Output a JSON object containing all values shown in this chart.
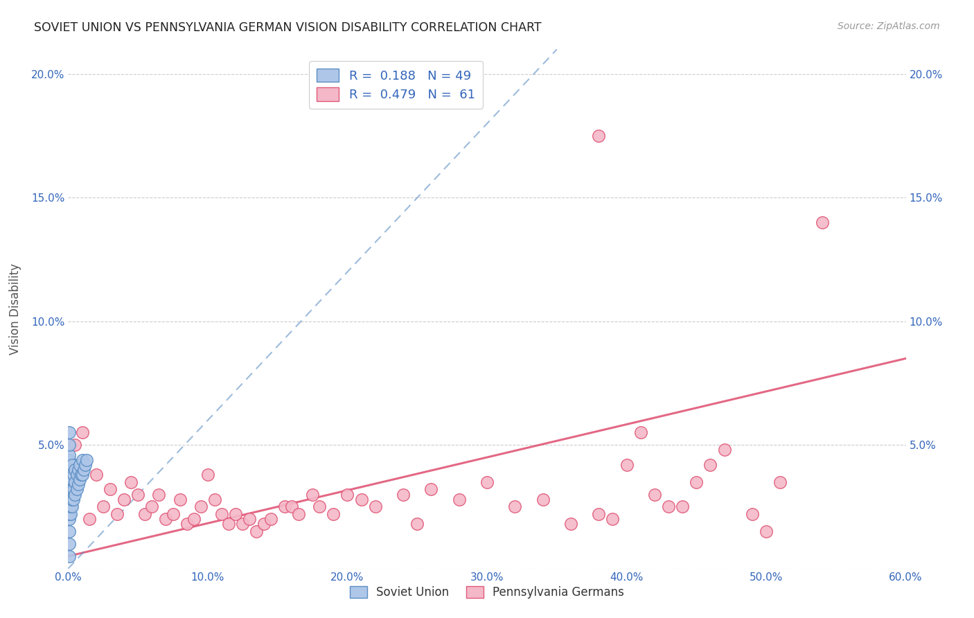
{
  "title": "SOVIET UNION VS PENNSYLVANIA GERMAN VISION DISABILITY CORRELATION CHART",
  "source": "Source: ZipAtlas.com",
  "ylabel": "Vision Disability",
  "xlim": [
    0,
    0.6
  ],
  "ylim": [
    0,
    0.21
  ],
  "xticks": [
    0.0,
    0.1,
    0.2,
    0.3,
    0.4,
    0.5,
    0.6
  ],
  "yticks": [
    0.0,
    0.05,
    0.1,
    0.15,
    0.2
  ],
  "xticklabels": [
    "0.0%",
    "10.0%",
    "20.0%",
    "30.0%",
    "40.0%",
    "50.0%",
    "60.0%"
  ],
  "yticklabels": [
    "",
    "5.0%",
    "10.0%",
    "15.0%",
    "20.0%"
  ],
  "background_color": "#ffffff",
  "grid_color": "#cccccc",
  "soviet_color": "#aec6e8",
  "soviet_edge_color": "#5b8ec4",
  "pg_color": "#f4b8c8",
  "pg_edge_color": "#e05878",
  "soviet_R": 0.188,
  "soviet_N": 49,
  "pg_R": 0.479,
  "pg_N": 61,
  "axis_text_color": "#3366bb",
  "title_color": "#222222",
  "soviet_x": [
    0.001,
    0.001,
    0.001,
    0.001,
    0.001,
    0.001,
    0.001,
    0.001,
    0.001,
    0.001,
    0.001,
    0.001,
    0.001,
    0.001,
    0.001,
    0.001,
    0.001,
    0.001,
    0.002,
    0.002,
    0.002,
    0.002,
    0.002,
    0.002,
    0.002,
    0.003,
    0.003,
    0.003,
    0.003,
    0.003,
    0.004,
    0.004,
    0.004,
    0.005,
    0.005,
    0.005,
    0.006,
    0.006,
    0.007,
    0.007,
    0.008,
    0.008,
    0.009,
    0.01,
    0.01,
    0.011,
    0.012,
    0.013,
    0.001
  ],
  "soviet_y": [
    0.005,
    0.01,
    0.015,
    0.02,
    0.022,
    0.025,
    0.028,
    0.03,
    0.032,
    0.033,
    0.035,
    0.036,
    0.038,
    0.04,
    0.042,
    0.044,
    0.046,
    0.05,
    0.022,
    0.025,
    0.028,
    0.03,
    0.033,
    0.036,
    0.04,
    0.025,
    0.028,
    0.032,
    0.036,
    0.042,
    0.028,
    0.032,
    0.038,
    0.03,
    0.035,
    0.04,
    0.032,
    0.038,
    0.034,
    0.04,
    0.036,
    0.042,
    0.038,
    0.038,
    0.044,
    0.04,
    0.042,
    0.044,
    0.055
  ],
  "pg_x": [
    0.005,
    0.01,
    0.015,
    0.02,
    0.025,
    0.03,
    0.035,
    0.04,
    0.045,
    0.05,
    0.055,
    0.06,
    0.065,
    0.07,
    0.075,
    0.08,
    0.085,
    0.09,
    0.095,
    0.1,
    0.105,
    0.11,
    0.115,
    0.12,
    0.125,
    0.13,
    0.135,
    0.14,
    0.145,
    0.155,
    0.16,
    0.165,
    0.175,
    0.18,
    0.19,
    0.2,
    0.21,
    0.22,
    0.24,
    0.25,
    0.26,
    0.28,
    0.3,
    0.32,
    0.34,
    0.36,
    0.38,
    0.39,
    0.4,
    0.41,
    0.42,
    0.43,
    0.44,
    0.45,
    0.46,
    0.47,
    0.49,
    0.5,
    0.51,
    0.54,
    0.38
  ],
  "pg_y": [
    0.05,
    0.055,
    0.02,
    0.038,
    0.025,
    0.032,
    0.022,
    0.028,
    0.035,
    0.03,
    0.022,
    0.025,
    0.03,
    0.02,
    0.022,
    0.028,
    0.018,
    0.02,
    0.025,
    0.038,
    0.028,
    0.022,
    0.018,
    0.022,
    0.018,
    0.02,
    0.015,
    0.018,
    0.02,
    0.025,
    0.025,
    0.022,
    0.03,
    0.025,
    0.022,
    0.03,
    0.028,
    0.025,
    0.03,
    0.018,
    0.032,
    0.028,
    0.035,
    0.025,
    0.028,
    0.018,
    0.022,
    0.02,
    0.042,
    0.055,
    0.03,
    0.025,
    0.025,
    0.035,
    0.042,
    0.048,
    0.022,
    0.015,
    0.035,
    0.14,
    0.175
  ]
}
